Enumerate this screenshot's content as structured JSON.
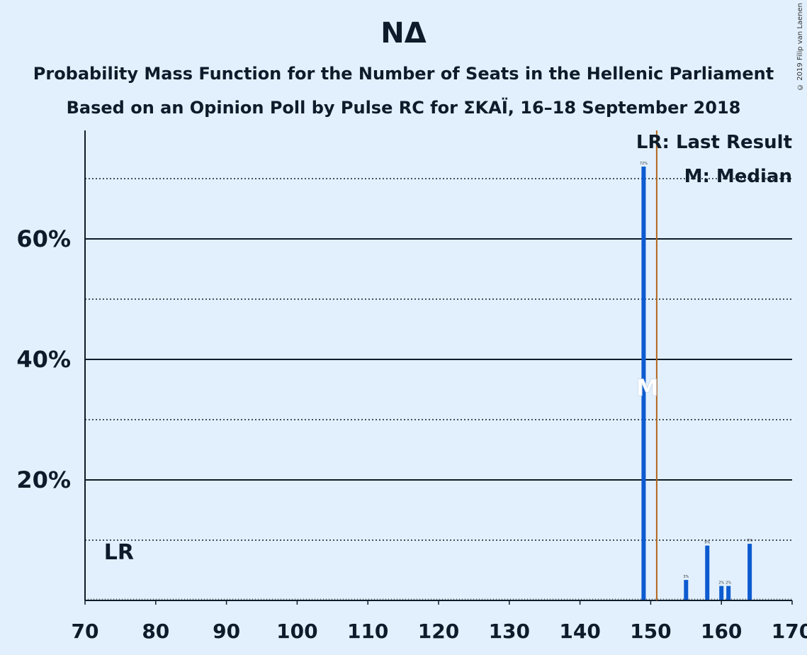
{
  "header": {
    "title": "ΝΔ",
    "subtitle1": "Probability Mass Function for the Number of Seats in the Hellenic Parliament",
    "subtitle2": "Based on an Opinion Poll by Pulse RC for ΣΚΑΪ, 16–18 September 2018",
    "copyright": "© 2019 Filip van Laenen"
  },
  "legend": {
    "last_result": "LR: Last Result",
    "median": "M: Median"
  },
  "markers": {
    "lr_label": "LR",
    "median_label": "M",
    "median_seats": 149,
    "last_result_seats": 75,
    "majority_line_seats": 151
  },
  "colors": {
    "bar": "#0d5bd0",
    "majority_line": "#b2651a",
    "background": "#e2f0fd",
    "median_marker": "#ffffff"
  },
  "chart_data": {
    "type": "bar",
    "title": "ΝΔ",
    "xlabel": "",
    "ylabel": "",
    "xlim": [
      70,
      170
    ],
    "ylim": [
      0,
      78
    ],
    "x_ticks": [
      70,
      80,
      90,
      100,
      110,
      120,
      130,
      140,
      150,
      160,
      170
    ],
    "y_ticks": [
      {
        "value": 20,
        "label": "20%"
      },
      {
        "value": 40,
        "label": "40%"
      },
      {
        "value": 60,
        "label": "60%"
      }
    ],
    "y_dotted": [
      10,
      30,
      50,
      70
    ],
    "grid": true,
    "legend_position": "top-right",
    "bars": [
      {
        "x": 149,
        "value": 72,
        "label": "72%"
      },
      {
        "x": 155,
        "value": 3.4,
        "label": "3%"
      },
      {
        "x": 158,
        "value": 9.1,
        "label": "9%"
      },
      {
        "x": 160,
        "value": 2.4,
        "label": "2%"
      },
      {
        "x": 161,
        "value": 2.4,
        "label": "2%"
      },
      {
        "x": 164,
        "value": 9.4,
        "label": "9%"
      }
    ]
  }
}
